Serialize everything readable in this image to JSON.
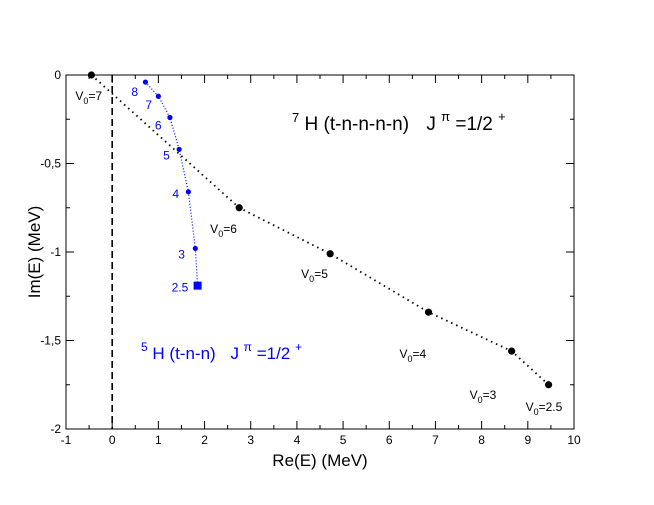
{
  "chart_data": {
    "type": "scatter",
    "xlabel": "Re(E)  (MeV)",
    "ylabel": "Im(E)  (MeV)",
    "xlim": [
      -1,
      10
    ],
    "ylim": [
      -2,
      0
    ],
    "x_ticks": [
      -1,
      0,
      1,
      2,
      3,
      4,
      5,
      6,
      7,
      8,
      9,
      10
    ],
    "x_tick_labels": [
      "-1",
      "0",
      "1",
      "2",
      "3",
      "4",
      "5",
      "6",
      "7",
      "8",
      "9",
      "10"
    ],
    "y_ticks": [
      0,
      -0.5,
      -1,
      -1.5,
      -2
    ],
    "y_tick_labels": [
      "0",
      "-0,5",
      "-1",
      "-1,5",
      "-2"
    ],
    "grid": false,
    "vertical_reference_line": {
      "x": 0,
      "style": "dashed",
      "color": "#000000"
    },
    "series": [
      {
        "color": "#000000",
        "line_style": "dotted",
        "marker": "circle",
        "points": [
          {
            "x": -0.45,
            "y": 0.0,
            "label": "V0=7"
          },
          {
            "x": 2.75,
            "y": -0.75,
            "label": "V0=6"
          },
          {
            "x": 4.72,
            "y": -1.01,
            "label": "V0=5"
          },
          {
            "x": 6.85,
            "y": -1.34,
            "label": "V0=4"
          },
          {
            "x": 8.65,
            "y": -1.56,
            "label": "V0=3"
          },
          {
            "x": 9.45,
            "y": -1.75,
            "label": "V0=2.5"
          }
        ]
      },
      {
        "color": "#0000ff",
        "line_style": "dotted",
        "marker": "circle",
        "points": [
          {
            "x": 0.72,
            "y": -0.04,
            "label": "8"
          },
          {
            "x": 1.0,
            "y": -0.12,
            "label": "7"
          },
          {
            "x": 1.25,
            "y": -0.24,
            "label": "6"
          },
          {
            "x": 1.45,
            "y": -0.42,
            "label": "5"
          },
          {
            "x": 1.65,
            "y": -0.66,
            "label": "4"
          },
          {
            "x": 1.8,
            "y": -0.98,
            "label": "3"
          },
          {
            "x": 1.85,
            "y": -1.19,
            "label": "2.5",
            "marker": "square"
          }
        ]
      }
    ],
    "annotations": {
      "h7": {
        "mass": "7",
        "nuclide": "H (t-n-n-n-n)",
        "jp_base": "J",
        "jp_sup": "π",
        "jp_value": "=1/2",
        "jp_parity": "+",
        "color": "#000000"
      },
      "h5": {
        "mass": "5",
        "nuclide": "H (t-n-n)",
        "jp_base": "J",
        "jp_sup": "π",
        "jp_value": "=1/2",
        "jp_parity": "+",
        "color": "#0000ff"
      }
    }
  }
}
